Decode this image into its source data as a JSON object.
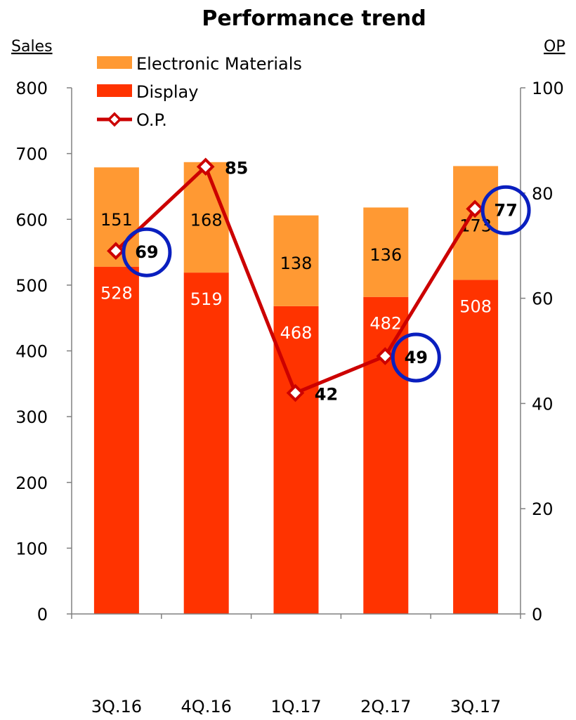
{
  "chart_data": {
    "type": "bar",
    "title": "Performance trend",
    "left_axis_label": "Sales",
    "right_axis_label": "OP",
    "categories": [
      "3Q.16",
      "4Q.16",
      "1Q.17",
      "2Q.17",
      "3Q.17"
    ],
    "series": [
      {
        "name": "Display",
        "kind": "stacked-bar",
        "axis": "left",
        "color": "#ff3300",
        "label_color": "#ffffff",
        "values": [
          528,
          519,
          468,
          482,
          508
        ]
      },
      {
        "name": "Electronic Materials",
        "kind": "stacked-bar",
        "axis": "left",
        "color": "#ff9933",
        "label_color": "#000000",
        "values": [
          151,
          168,
          138,
          136,
          173
        ]
      },
      {
        "name": "O.P.",
        "kind": "line",
        "axis": "right",
        "color": "#cc0000",
        "values": [
          69,
          85,
          42,
          49,
          77
        ]
      }
    ],
    "left_axis": {
      "min": 0,
      "max": 800,
      "step": 100
    },
    "right_axis": {
      "min": 0,
      "max": 100,
      "step": 20
    },
    "highlighted_points": [
      "3Q.16",
      "2Q.17",
      "3Q.17"
    ],
    "highlight_color": "#0a1fbf",
    "grid": false,
    "legend_position": "top-left"
  }
}
